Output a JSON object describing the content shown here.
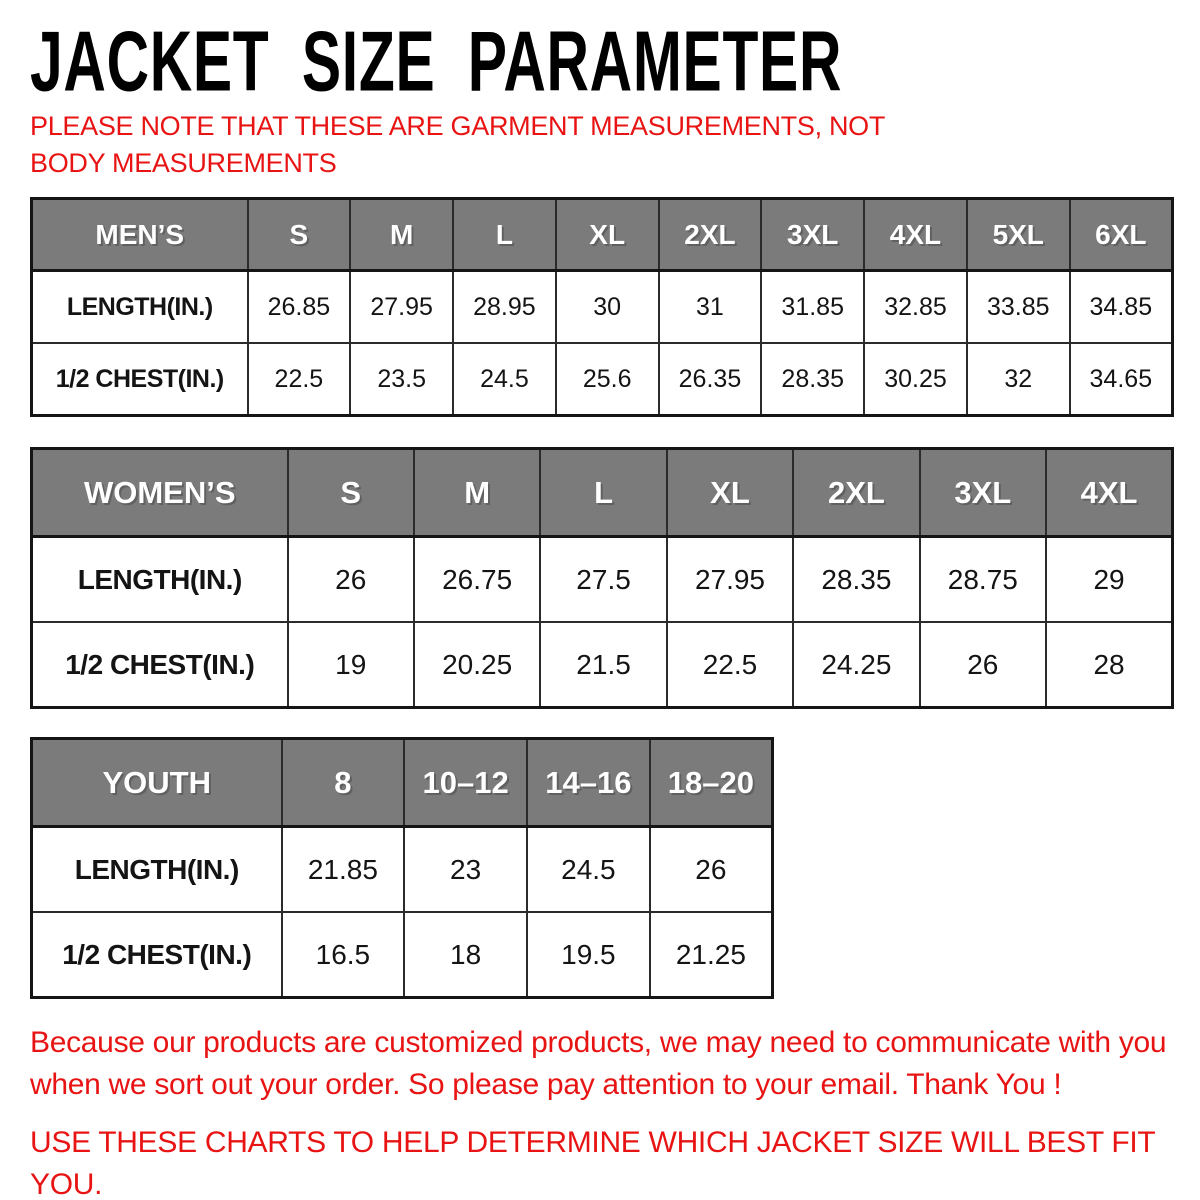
{
  "page": {
    "title": "JACKET SIZE PARAMETER",
    "note": "PLEASE NOTE THAT THESE ARE GARMENT MEASUREMENTS, NOT BODY MEASUREMENTS",
    "footer_line1": "Because our products are customized products, we may need to communicate with you when we sort out your order. So please pay attention to your email. Thank You !",
    "footer_line2": "USE THESE CHARTS TO HELP DETERMINE WHICH JACKET SIZE WILL BEST FIT YOU."
  },
  "colors": {
    "header_gray": "#7b7b7b",
    "accent_red": "#e81414",
    "border_black": "#151515"
  },
  "tables": [
    {
      "name": "MEN’S",
      "sizes": [
        "S",
        "M",
        "L",
        "XL",
        "2XL",
        "3XL",
        "4XL",
        "5XL",
        "6XL"
      ],
      "rows": [
        {
          "label": "LENGTH(IN.)",
          "values": [
            "26.85",
            "27.95",
            "28.95",
            "30",
            "31",
            "31.85",
            "32.85",
            "33.85",
            "34.85"
          ]
        },
        {
          "label": "1/2 CHEST(IN.)",
          "values": [
            "22.5",
            "23.5",
            "24.5",
            "25.6",
            "26.35",
            "28.35",
            "30.25",
            "32",
            "34.65"
          ]
        }
      ]
    },
    {
      "name": "WOMEN’S",
      "sizes": [
        "S",
        "M",
        "L",
        "XL",
        "2XL",
        "3XL",
        "4XL"
      ],
      "rows": [
        {
          "label": "LENGTH(IN.)",
          "values": [
            "26",
            "26.75",
            "27.5",
            "27.95",
            "28.35",
            "28.75",
            "29"
          ]
        },
        {
          "label": "1/2 CHEST(IN.)",
          "values": [
            "19",
            "20.25",
            "21.5",
            "22.5",
            "24.25",
            "26",
            "28"
          ]
        }
      ]
    },
    {
      "name": "YOUTH",
      "sizes": [
        "8",
        "10–12",
        "14–16",
        "18–20"
      ],
      "rows": [
        {
          "label": "LENGTH(IN.)",
          "values": [
            "21.85",
            "23",
            "24.5",
            "26"
          ]
        },
        {
          "label": "1/2 CHEST(IN.)",
          "values": [
            "16.5",
            "18",
            "19.5",
            "21.25"
          ]
        }
      ]
    }
  ]
}
